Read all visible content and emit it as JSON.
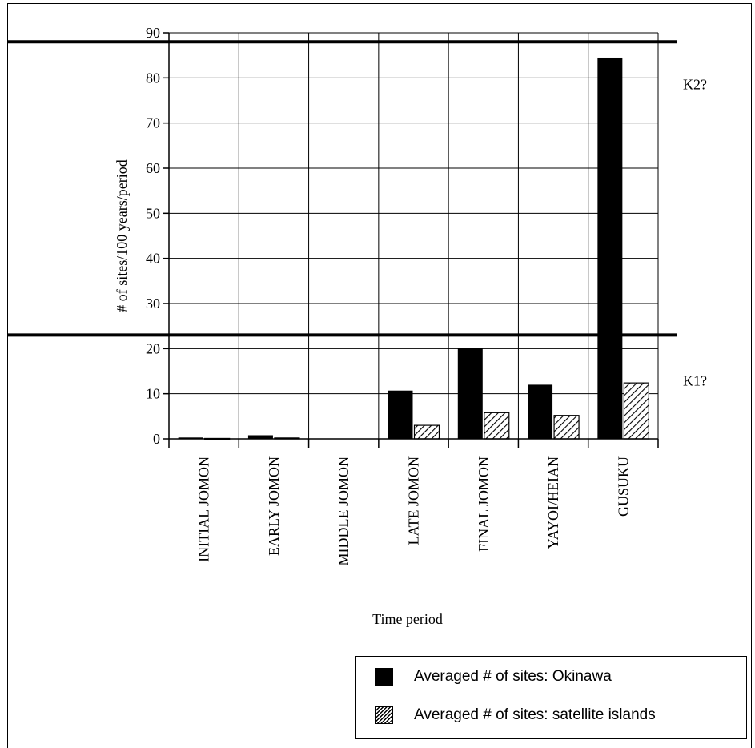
{
  "chart_data": {
    "type": "bar",
    "title": "",
    "xlabel": "Time period",
    "ylabel": "# of sites/100 years/period",
    "ylim": [
      0,
      90
    ],
    "yticks": [
      0,
      10,
      20,
      30,
      40,
      50,
      60,
      70,
      80,
      90
    ],
    "categories": [
      "INITIAL JOMON",
      "EARLY JOMON",
      "MIDDLE JOMON",
      "LATE JOMON",
      "FINAL JOMON",
      "YAYOI/HEIAN",
      "GUSUKU"
    ],
    "series": [
      {
        "name": "Averaged # of sites: Okinawa",
        "values": [
          0.3,
          0.8,
          0,
          10.7,
          20,
          12,
          84.5
        ],
        "fill": "solid"
      },
      {
        "name": "Averaged # of sites: satellite islands",
        "values": [
          0.1,
          0.2,
          0,
          3,
          5.8,
          5.2,
          12.4
        ],
        "fill": "hatched"
      }
    ],
    "reference_lines": [
      {
        "value": 88,
        "label": "K2?"
      },
      {
        "value": 23,
        "label": "K1?"
      }
    ],
    "grid": true,
    "legend_position": "bottom-right"
  }
}
